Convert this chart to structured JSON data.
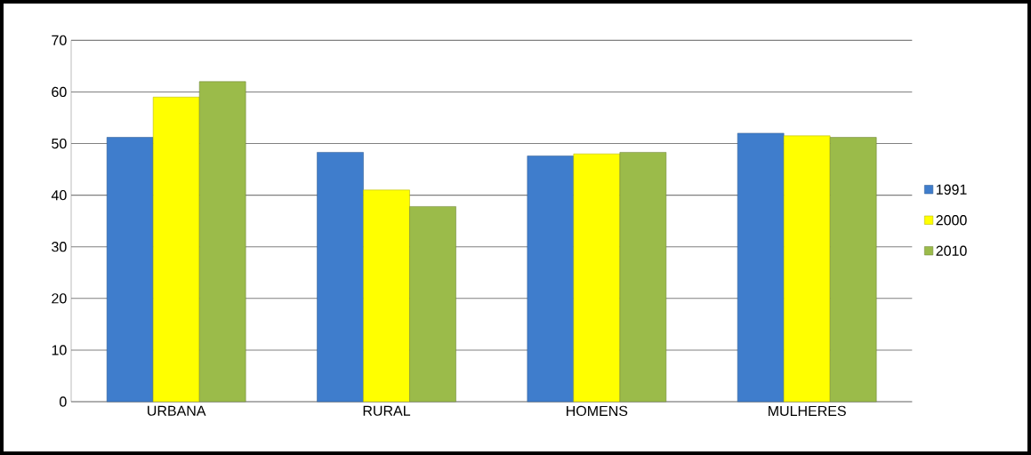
{
  "chart_data": {
    "type": "bar",
    "categories": [
      "URBANA",
      "RURAL",
      "HOMENS",
      "MULHERES"
    ],
    "series": [
      {
        "name": "1991",
        "color": "#3f7dcc",
        "values": [
          51.2,
          48.3,
          47.6,
          52
        ]
      },
      {
        "name": "2000",
        "color": "#ffff00",
        "values": [
          59,
          41,
          48,
          51.5
        ]
      },
      {
        "name": "2010",
        "color": "#9bbb4a",
        "values": [
          62,
          37.8,
          48.3,
          51.2
        ]
      }
    ],
    "ylim": [
      0,
      70
    ],
    "yticks": [
      0,
      10,
      20,
      30,
      40,
      50,
      60,
      70
    ],
    "grid": "y",
    "legend": "right"
  }
}
